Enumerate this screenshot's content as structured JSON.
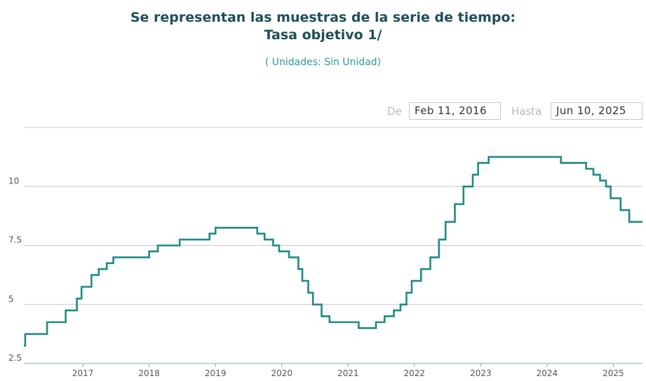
{
  "header": {
    "title_line1": "Se representan las muestras de la serie de tiempo:",
    "title_line2": "Tasa objetivo 1/",
    "units": "( Unidades:  Sin Unidad)"
  },
  "range": {
    "from_label": "De",
    "from_value": "Feb 11, 2016",
    "to_label": "Hasta",
    "to_value": "Jun 10, 2025"
  },
  "colors": {
    "line": "#1f8a86",
    "grid": "#c8c8c8",
    "title": "#1f4e5a",
    "units": "#2b9a93"
  },
  "chart_data": {
    "type": "line",
    "step": true,
    "title": "",
    "xlabel": "",
    "ylabel": "",
    "xlim": [
      2016.11,
      2025.44
    ],
    "ylim": [
      2.5,
      12.5
    ],
    "y_ticks": [
      2.5,
      5,
      7.5,
      10
    ],
    "y_tick_labels": [
      "2.5",
      "5",
      "7.5",
      "10"
    ],
    "x_ticks": [
      2017,
      2018,
      2019,
      2020,
      2021,
      2022,
      2023,
      2024,
      2025
    ],
    "x_tick_labels": [
      "2017",
      "2018",
      "2019",
      "2020",
      "2021",
      "2022",
      "2023",
      "2024",
      "2025"
    ],
    "grid": true,
    "series": [
      {
        "x": [
          2016.11,
          2016.13,
          2016.46,
          2016.74,
          2016.91,
          2016.98,
          2017.13,
          2017.24,
          2017.36,
          2017.46,
          2018.0,
          2018.13,
          2018.46,
          2018.91,
          2019.0,
          2019.63,
          2019.74,
          2019.87,
          2019.96,
          2020.11,
          2020.25,
          2020.31,
          2020.4,
          2020.47,
          2020.6,
          2020.72,
          2020.88,
          2021.16,
          2021.42,
          2021.55,
          2021.69,
          2021.79,
          2021.88,
          2021.96,
          2022.1,
          2022.24,
          2022.37,
          2022.47,
          2022.61,
          2022.74,
          2022.88,
          2022.96,
          2023.12,
          2023.24,
          2024.21,
          2024.59,
          2024.7,
          2024.8,
          2024.89,
          2024.96,
          2025.11,
          2025.24,
          2025.38,
          2025.44
        ],
        "y": [
          3.25,
          3.75,
          4.25,
          4.75,
          5.25,
          5.75,
          6.25,
          6.5,
          6.75,
          7.0,
          7.25,
          7.5,
          7.75,
          8.0,
          8.25,
          8.0,
          7.75,
          7.5,
          7.25,
          7.0,
          6.5,
          6.0,
          5.5,
          5.0,
          4.5,
          4.25,
          4.25,
          4.0,
          4.25,
          4.5,
          4.75,
          5.0,
          5.5,
          6.0,
          6.5,
          7.0,
          7.75,
          8.5,
          9.25,
          10.0,
          10.5,
          11.0,
          11.25,
          11.25,
          11.0,
          10.75,
          10.5,
          10.25,
          10.0,
          9.5,
          9.0,
          8.5,
          8.5,
          8.5
        ]
      }
    ]
  }
}
